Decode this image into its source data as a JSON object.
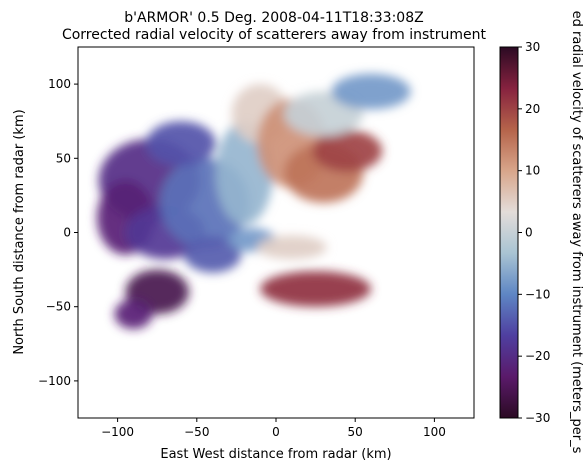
{
  "chart_data": {
    "type": "heatmap",
    "title": "b'ARMOR' 0.5 Deg. 2008-04-11T18:33:08Z",
    "subtitle": "Corrected radial velocity of scatterers away from instrument",
    "xlabel": "East West distance from radar (km)",
    "ylabel": "North South distance from radar (km)",
    "xlim": [
      -125,
      125
    ],
    "ylim": [
      -125,
      125
    ],
    "xticks": [
      -100,
      -50,
      0,
      50,
      100
    ],
    "yticks": [
      -100,
      -50,
      0,
      50,
      100
    ],
    "xtick_labels": [
      "−100",
      "−50",
      "0",
      "50",
      "100"
    ],
    "ytick_labels": [
      "−100",
      "−50",
      "0",
      "50",
      "100"
    ],
    "grid": false,
    "colorbar": {
      "label": "ed radial velocity of scatterers away from instrument (meters_per_s",
      "vmin": -30,
      "vmax": 30,
      "ticks": [
        -30,
        -20,
        -10,
        0,
        10,
        20,
        30
      ],
      "tick_labels": [
        "−30",
        "−20",
        "−10",
        "0",
        "10",
        "20",
        "30"
      ],
      "colormap_stops": [
        "#2b0a23",
        "#5a1a6a",
        "#4f3fa0",
        "#5e86c4",
        "#a9c4d3",
        "#e3dcd9",
        "#d8a58a",
        "#b5634a",
        "#86223f",
        "#2b0a23"
      ]
    },
    "regions": [
      {
        "center": [
          -80,
          35
        ],
        "radius": [
          32,
          28
        ],
        "value": -20
      },
      {
        "center": [
          -95,
          10
        ],
        "radius": [
          18,
          25
        ],
        "value": -22
      },
      {
        "center": [
          -70,
          0
        ],
        "radius": [
          25,
          18
        ],
        "value": -18
      },
      {
        "center": [
          -45,
          20
        ],
        "radius": [
          28,
          30
        ],
        "value": -12
      },
      {
        "center": [
          -60,
          60
        ],
        "radius": [
          22,
          15
        ],
        "value": -15
      },
      {
        "center": [
          -40,
          -15
        ],
        "radius": [
          18,
          12
        ],
        "value": -14
      },
      {
        "center": [
          -20,
          40
        ],
        "radius": [
          18,
          35
        ],
        "value": -5
      },
      {
        "center": [
          -10,
          80
        ],
        "radius": [
          18,
          20
        ],
        "value": 5
      },
      {
        "center": [
          10,
          60
        ],
        "radius": [
          22,
          30
        ],
        "value": 12
      },
      {
        "center": [
          30,
          40
        ],
        "radius": [
          25,
          20
        ],
        "value": 15
      },
      {
        "center": [
          45,
          55
        ],
        "radius": [
          22,
          14
        ],
        "value": 20
      },
      {
        "center": [
          30,
          80
        ],
        "radius": [
          25,
          15
        ],
        "value": 0
      },
      {
        "center": [
          60,
          95
        ],
        "radius": [
          25,
          12
        ],
        "value": -8
      },
      {
        "center": [
          25,
          -38
        ],
        "radius": [
          35,
          12
        ],
        "value": 22
      },
      {
        "center": [
          -75,
          -40
        ],
        "radius": [
          20,
          15
        ],
        "value": -26
      },
      {
        "center": [
          -90,
          -55
        ],
        "radius": [
          12,
          10
        ],
        "value": -22
      },
      {
        "center": [
          -15,
          -5
        ],
        "radius": [
          15,
          8
        ],
        "value": -8
      },
      {
        "center": [
          10,
          -10
        ],
        "radius": [
          22,
          8
        ],
        "value": 5
      }
    ]
  }
}
